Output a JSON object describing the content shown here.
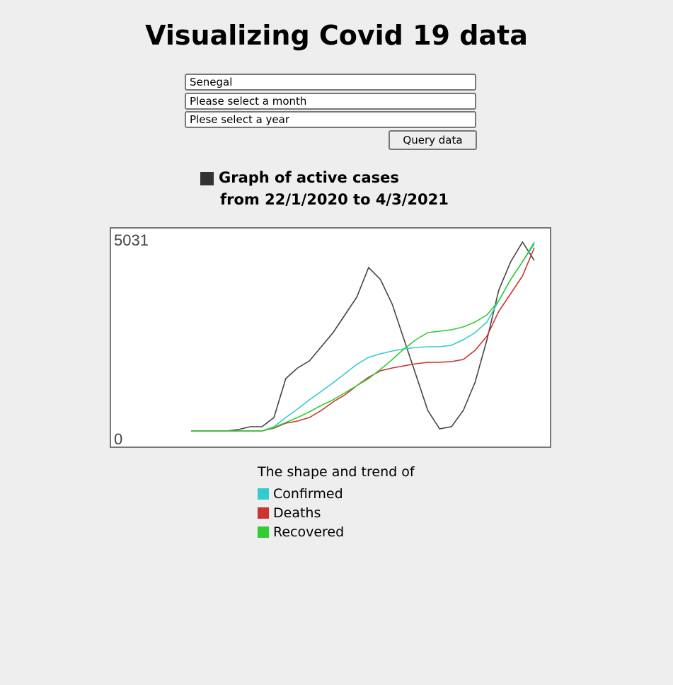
{
  "title": "Visualizing Covid 19 data",
  "form": {
    "country": "Senegal",
    "month": "Please select a month",
    "year": "Plese select a year",
    "button": "Query data"
  },
  "chart_data": {
    "type": "line",
    "title": "Graph of active cases",
    "subtitle": "from 22/1/2020 to 4/3/2021",
    "legend_title": "The shape and trend of",
    "ylim": [
      0,
      5031
    ],
    "yticks": [
      0,
      5031
    ],
    "grid": false,
    "series": [
      {
        "color": "#444444",
        "values": [
          0,
          0,
          0,
          0,
          38,
          113,
          113,
          357,
          1389,
          1670,
          1858,
          2234,
          2609,
          3078,
          3548,
          4336,
          4017,
          3360,
          2421,
          1483,
          544,
          56,
          113,
          544,
          1295,
          2421,
          3735,
          4486,
          5012,
          4524
        ]
      },
      {
        "name": "Confirmed",
        "color": "#33cccc",
        "values": [
          0,
          0,
          0,
          0,
          0,
          0,
          0,
          113,
          357,
          582,
          826,
          1051,
          1276,
          1520,
          1764,
          1952,
          2046,
          2121,
          2177,
          2215,
          2234,
          2234,
          2271,
          2421,
          2609,
          2891,
          3454,
          4017,
          4486,
          4956
        ]
      },
      {
        "name": "Deaths",
        "color": "#cc3333",
        "values": [
          0,
          0,
          0,
          0,
          0,
          0,
          0,
          75,
          206,
          263,
          357,
          544,
          770,
          957,
          1201,
          1427,
          1595,
          1670,
          1727,
          1783,
          1821,
          1821,
          1839,
          1896,
          2140,
          2515,
          3172,
          3642,
          4111,
          4862
        ]
      },
      {
        "name": "Recovered",
        "color": "#33cc33",
        "values": [
          0,
          0,
          0,
          0,
          0,
          0,
          0,
          94,
          225,
          357,
          507,
          676,
          826,
          1014,
          1201,
          1389,
          1633,
          1896,
          2177,
          2421,
          2609,
          2646,
          2684,
          2759,
          2891,
          3078,
          3454,
          4017,
          4486,
          5012
        ]
      }
    ]
  }
}
